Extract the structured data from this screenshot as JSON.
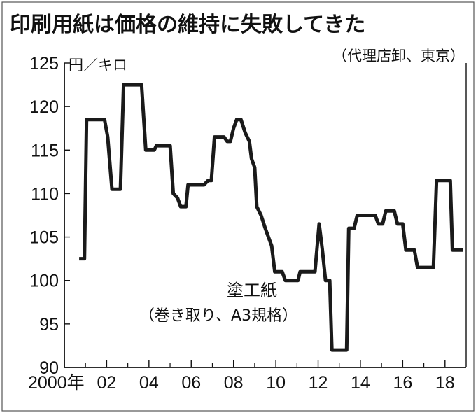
{
  "chart_data": {
    "type": "line",
    "title": "印刷用紙は価格の維持に失敗してきた",
    "subtitle": "（代理店卸、東京）",
    "ylabel": "円／キロ",
    "ylim": [
      90,
      125
    ],
    "yticks": [
      90,
      95,
      100,
      105,
      110,
      115,
      120,
      125
    ],
    "xlim": [
      2000,
      2019
    ],
    "xticks": [
      {
        "value": 2000,
        "label": "2000年"
      },
      {
        "value": 2002,
        "label": "02"
      },
      {
        "value": 2004,
        "label": "04"
      },
      {
        "value": 2006,
        "label": "06"
      },
      {
        "value": 2008,
        "label": "08"
      },
      {
        "value": 2010,
        "label": "10"
      },
      {
        "value": 2012,
        "label": "12"
      },
      {
        "value": 2014,
        "label": "14"
      },
      {
        "value": 2016,
        "label": "16"
      },
      {
        "value": 2018,
        "label": "18"
      }
    ],
    "series": [
      {
        "name": "塗工紙",
        "note": "（巻き取り、A3規格）",
        "color": "#1a1a1a",
        "points": [
          [
            2000.7,
            102.5
          ],
          [
            2000.95,
            102.5
          ],
          [
            2001.05,
            118.5
          ],
          [
            2001.9,
            118.5
          ],
          [
            2002.05,
            116.5
          ],
          [
            2002.25,
            110.5
          ],
          [
            2002.65,
            110.5
          ],
          [
            2002.8,
            122.5
          ],
          [
            2003.65,
            122.5
          ],
          [
            2003.85,
            115.0
          ],
          [
            2004.25,
            115.0
          ],
          [
            2004.35,
            115.5
          ],
          [
            2005.0,
            115.5
          ],
          [
            2005.15,
            110.0
          ],
          [
            2005.35,
            109.5
          ],
          [
            2005.5,
            108.5
          ],
          [
            2005.75,
            108.5
          ],
          [
            2005.85,
            111.0
          ],
          [
            2006.6,
            111.0
          ],
          [
            2006.8,
            111.5
          ],
          [
            2006.95,
            111.5
          ],
          [
            2007.1,
            116.5
          ],
          [
            2007.55,
            116.5
          ],
          [
            2007.7,
            116.0
          ],
          [
            2007.85,
            116.0
          ],
          [
            2008.0,
            117.5
          ],
          [
            2008.15,
            118.5
          ],
          [
            2008.35,
            118.5
          ],
          [
            2008.55,
            117.0
          ],
          [
            2008.75,
            116.0
          ],
          [
            2008.85,
            114.0
          ],
          [
            2009.0,
            113.0
          ],
          [
            2009.1,
            108.5
          ],
          [
            2009.3,
            107.5
          ],
          [
            2009.5,
            106.0
          ],
          [
            2009.65,
            105.0
          ],
          [
            2009.8,
            104.0
          ],
          [
            2009.95,
            101.0
          ],
          [
            2010.3,
            101.0
          ],
          [
            2010.45,
            100.0
          ],
          [
            2011.05,
            100.0
          ],
          [
            2011.15,
            101.0
          ],
          [
            2011.85,
            101.0
          ],
          [
            2012.05,
            106.5
          ],
          [
            2012.2,
            103.5
          ],
          [
            2012.35,
            100.0
          ],
          [
            2012.55,
            100.0
          ],
          [
            2012.65,
            92.0
          ],
          [
            2013.35,
            92.0
          ],
          [
            2013.45,
            106.0
          ],
          [
            2013.7,
            106.0
          ],
          [
            2013.85,
            107.5
          ],
          [
            2014.7,
            107.5
          ],
          [
            2014.85,
            106.5
          ],
          [
            2015.05,
            106.5
          ],
          [
            2015.2,
            108.0
          ],
          [
            2015.6,
            108.0
          ],
          [
            2015.75,
            106.5
          ],
          [
            2016.0,
            106.5
          ],
          [
            2016.15,
            103.5
          ],
          [
            2016.55,
            103.5
          ],
          [
            2016.7,
            101.5
          ],
          [
            2017.45,
            101.5
          ],
          [
            2017.6,
            111.5
          ],
          [
            2018.25,
            111.5
          ],
          [
            2018.35,
            103.5
          ],
          [
            2018.85,
            103.5
          ]
        ]
      }
    ]
  }
}
